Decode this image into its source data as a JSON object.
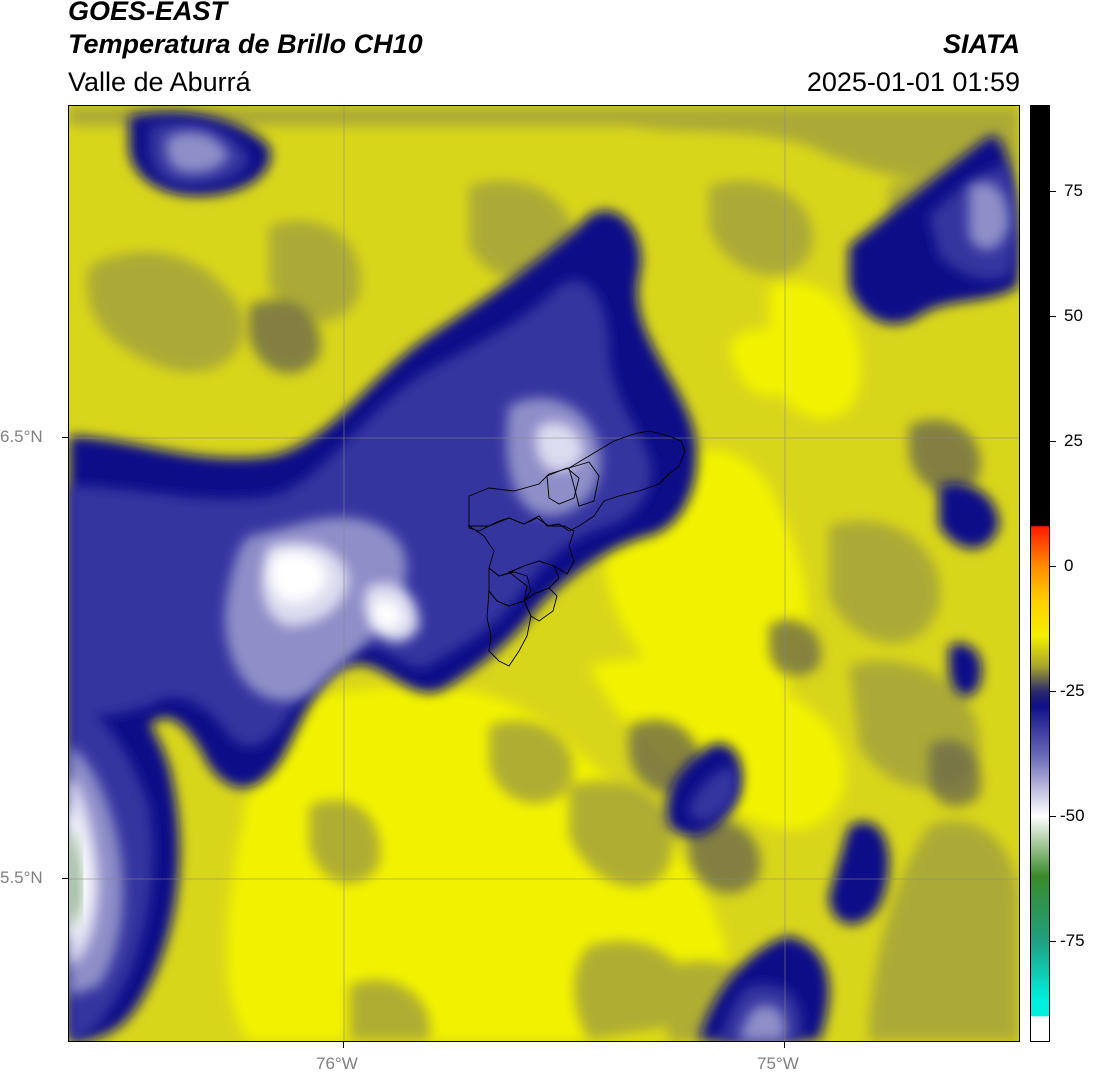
{
  "header": {
    "satellite": "GOES-EAST",
    "product": "Temperatura de Brillo CH10",
    "region": "Valle de Aburrá",
    "agency": "SIATA",
    "timestamp": "2025-01-01 01:59"
  },
  "map": {
    "lat_labels": [
      {
        "value": 6.5,
        "label": "6.5°N"
      },
      {
        "value": 5.5,
        "label": "5.5°N"
      }
    ],
    "lon_labels": [
      {
        "value": -76,
        "label": "76°W"
      },
      {
        "value": -75,
        "label": "75°W"
      }
    ],
    "lon_range": [
      -76.62,
      -74.47
    ],
    "lat_range": [
      5.13,
      7.25
    ],
    "grid": true
  },
  "colorbar": {
    "range": [
      -95,
      92
    ],
    "ticks": [
      {
        "value": 75,
        "label": "75"
      },
      {
        "value": 50,
        "label": "50"
      },
      {
        "value": 25,
        "label": "25"
      },
      {
        "value": 0,
        "label": "0"
      },
      {
        "value": -25,
        "label": "-25"
      },
      {
        "value": -50,
        "label": "-50"
      },
      {
        "value": -75,
        "label": "-75"
      }
    ],
    "stops": [
      {
        "value": 92,
        "color": "#000000"
      },
      {
        "value": 8,
        "color": "#000000"
      },
      {
        "value": 7.9,
        "color": "#ff1a00"
      },
      {
        "value": 0,
        "color": "#ff8c00"
      },
      {
        "value": -7,
        "color": "#ffd000"
      },
      {
        "value": -14,
        "color": "#f4f000"
      },
      {
        "value": -20,
        "color": "#a8a62a"
      },
      {
        "value": -25,
        "color": "#2a2a6a"
      },
      {
        "value": -28,
        "color": "#101088"
      },
      {
        "value": -38,
        "color": "#6a6ab8"
      },
      {
        "value": -50,
        "color": "#ffffff"
      },
      {
        "value": -62,
        "color": "#3a8a2a"
      },
      {
        "value": -75,
        "color": "#20a080"
      },
      {
        "value": -87,
        "color": "#00f0e0"
      },
      {
        "value": -90,
        "color": "#00f0e0"
      },
      {
        "value": -90.1,
        "color": "#ffffff"
      },
      {
        "value": -95,
        "color": "#ffffff"
      }
    ]
  },
  "palette": {
    "bright_yellow": "#f2f200",
    "mid_yellow": "#d8d61a",
    "olive": "#a5a33a",
    "dark_olive": "#6d6b4c",
    "slate": "#4a4a7a",
    "navy": "#101088",
    "blue": "#3434a0",
    "lavender": "#8e8ec8",
    "pale": "#dcdcf0",
    "white": "#ffffff",
    "green": "#8aae8a",
    "boundary": "#000000"
  }
}
